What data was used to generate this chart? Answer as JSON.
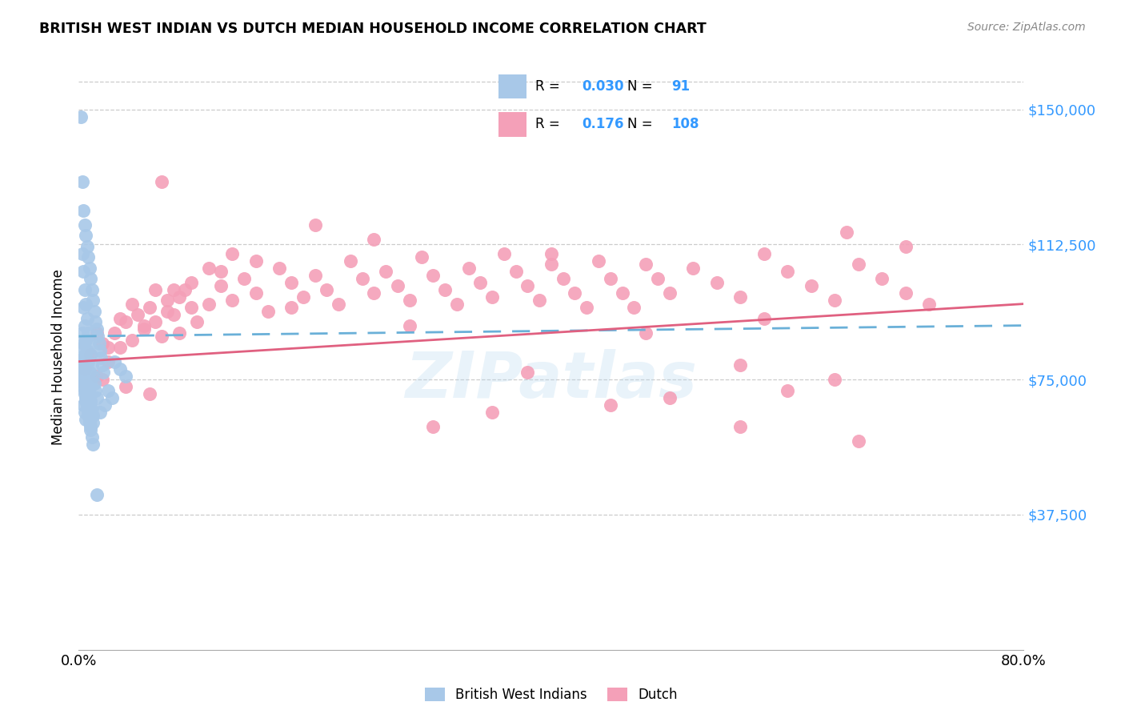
{
  "title": "BRITISH WEST INDIAN VS DUTCH MEDIAN HOUSEHOLD INCOME CORRELATION CHART",
  "source": "Source: ZipAtlas.com",
  "ylabel": "Median Household Income",
  "ytick_labels": [
    "$37,500",
    "$75,000",
    "$112,500",
    "$150,000"
  ],
  "ytick_values": [
    37500,
    75000,
    112500,
    150000
  ],
  "ymin": 0,
  "ymax": 162500,
  "xmin": 0.0,
  "xmax": 0.8,
  "color_bwi": "#a8c8e8",
  "color_dutch": "#f4a0b8",
  "color_bwi_line": "#6ab0d8",
  "color_dutch_line": "#e06080",
  "color_blue_text": "#3399ff",
  "watermark": "ZIPatlas",
  "bwi_scatter_x": [
    0.002,
    0.003,
    0.004,
    0.005,
    0.006,
    0.007,
    0.008,
    0.009,
    0.01,
    0.011,
    0.012,
    0.013,
    0.014,
    0.015,
    0.016,
    0.017,
    0.018,
    0.019,
    0.02,
    0.021,
    0.003,
    0.004,
    0.005,
    0.006,
    0.007,
    0.008,
    0.009,
    0.01,
    0.011,
    0.012,
    0.013,
    0.014,
    0.015,
    0.004,
    0.005,
    0.006,
    0.007,
    0.008,
    0.009,
    0.01,
    0.003,
    0.004,
    0.005,
    0.006,
    0.007,
    0.008,
    0.009,
    0.01,
    0.011,
    0.012,
    0.003,
    0.004,
    0.005,
    0.006,
    0.007,
    0.008,
    0.009,
    0.01,
    0.011,
    0.012,
    0.001,
    0.002,
    0.003,
    0.004,
    0.005,
    0.006,
    0.007,
    0.008,
    0.009,
    0.01,
    0.003,
    0.004,
    0.005,
    0.006,
    0.007,
    0.008,
    0.009,
    0.01,
    0.011,
    0.012,
    0.004,
    0.005,
    0.006,
    0.03,
    0.035,
    0.04,
    0.025,
    0.028,
    0.022,
    0.018,
    0.015
  ],
  "bwi_scatter_y": [
    148000,
    130000,
    122000,
    118000,
    115000,
    112000,
    109000,
    106000,
    103000,
    100000,
    97000,
    94000,
    91000,
    89000,
    87000,
    85000,
    83000,
    81000,
    79000,
    77000,
    110000,
    105000,
    100000,
    96000,
    92000,
    88000,
    85000,
    82000,
    79000,
    76000,
    74000,
    72000,
    70000,
    95000,
    90000,
    86000,
    83000,
    80000,
    77000,
    74000,
    88000,
    85000,
    82000,
    79000,
    76000,
    73000,
    71000,
    69000,
    67000,
    65000,
    84000,
    81000,
    78000,
    75000,
    73000,
    71000,
    69000,
    67000,
    65000,
    63000,
    80000,
    78000,
    76000,
    74000,
    72000,
    70000,
    68000,
    66000,
    64000,
    62000,
    75000,
    73000,
    71000,
    69000,
    67000,
    65000,
    63000,
    61000,
    59000,
    57000,
    68000,
    66000,
    64000,
    80000,
    78000,
    76000,
    72000,
    70000,
    68000,
    66000,
    43000
  ],
  "dutch_scatter_x": [
    0.005,
    0.01,
    0.015,
    0.02,
    0.025,
    0.03,
    0.035,
    0.04,
    0.045,
    0.05,
    0.055,
    0.06,
    0.065,
    0.07,
    0.075,
    0.08,
    0.085,
    0.09,
    0.095,
    0.1,
    0.11,
    0.12,
    0.13,
    0.14,
    0.15,
    0.16,
    0.17,
    0.18,
    0.19,
    0.2,
    0.21,
    0.22,
    0.23,
    0.24,
    0.25,
    0.26,
    0.27,
    0.28,
    0.29,
    0.3,
    0.31,
    0.32,
    0.33,
    0.34,
    0.35,
    0.36,
    0.37,
    0.38,
    0.39,
    0.4,
    0.41,
    0.42,
    0.43,
    0.44,
    0.45,
    0.46,
    0.47,
    0.48,
    0.49,
    0.5,
    0.52,
    0.54,
    0.56,
    0.58,
    0.6,
    0.62,
    0.64,
    0.66,
    0.68,
    0.7,
    0.015,
    0.025,
    0.035,
    0.045,
    0.055,
    0.065,
    0.075,
    0.085,
    0.095,
    0.11,
    0.13,
    0.15,
    0.2,
    0.25,
    0.3,
    0.35,
    0.4,
    0.45,
    0.5,
    0.6,
    0.65,
    0.7,
    0.02,
    0.04,
    0.06,
    0.38,
    0.56,
    0.64,
    0.07,
    0.08,
    0.12,
    0.18,
    0.28,
    0.48,
    0.58,
    0.72,
    0.66,
    0.56
  ],
  "dutch_scatter_y": [
    78000,
    82000,
    76000,
    85000,
    80000,
    88000,
    84000,
    91000,
    86000,
    93000,
    89000,
    95000,
    91000,
    87000,
    97000,
    93000,
    88000,
    100000,
    95000,
    91000,
    96000,
    101000,
    97000,
    103000,
    99000,
    94000,
    106000,
    102000,
    98000,
    104000,
    100000,
    96000,
    108000,
    103000,
    99000,
    105000,
    101000,
    97000,
    109000,
    104000,
    100000,
    96000,
    106000,
    102000,
    98000,
    110000,
    105000,
    101000,
    97000,
    107000,
    103000,
    99000,
    95000,
    108000,
    103000,
    99000,
    95000,
    107000,
    103000,
    99000,
    106000,
    102000,
    98000,
    110000,
    105000,
    101000,
    97000,
    107000,
    103000,
    99000,
    88000,
    84000,
    92000,
    96000,
    90000,
    100000,
    94000,
    98000,
    102000,
    106000,
    110000,
    108000,
    118000,
    114000,
    62000,
    66000,
    110000,
    68000,
    70000,
    72000,
    116000,
    112000,
    75000,
    73000,
    71000,
    77000,
    79000,
    75000,
    130000,
    100000,
    105000,
    95000,
    90000,
    88000,
    92000,
    96000,
    58000,
    62000
  ]
}
